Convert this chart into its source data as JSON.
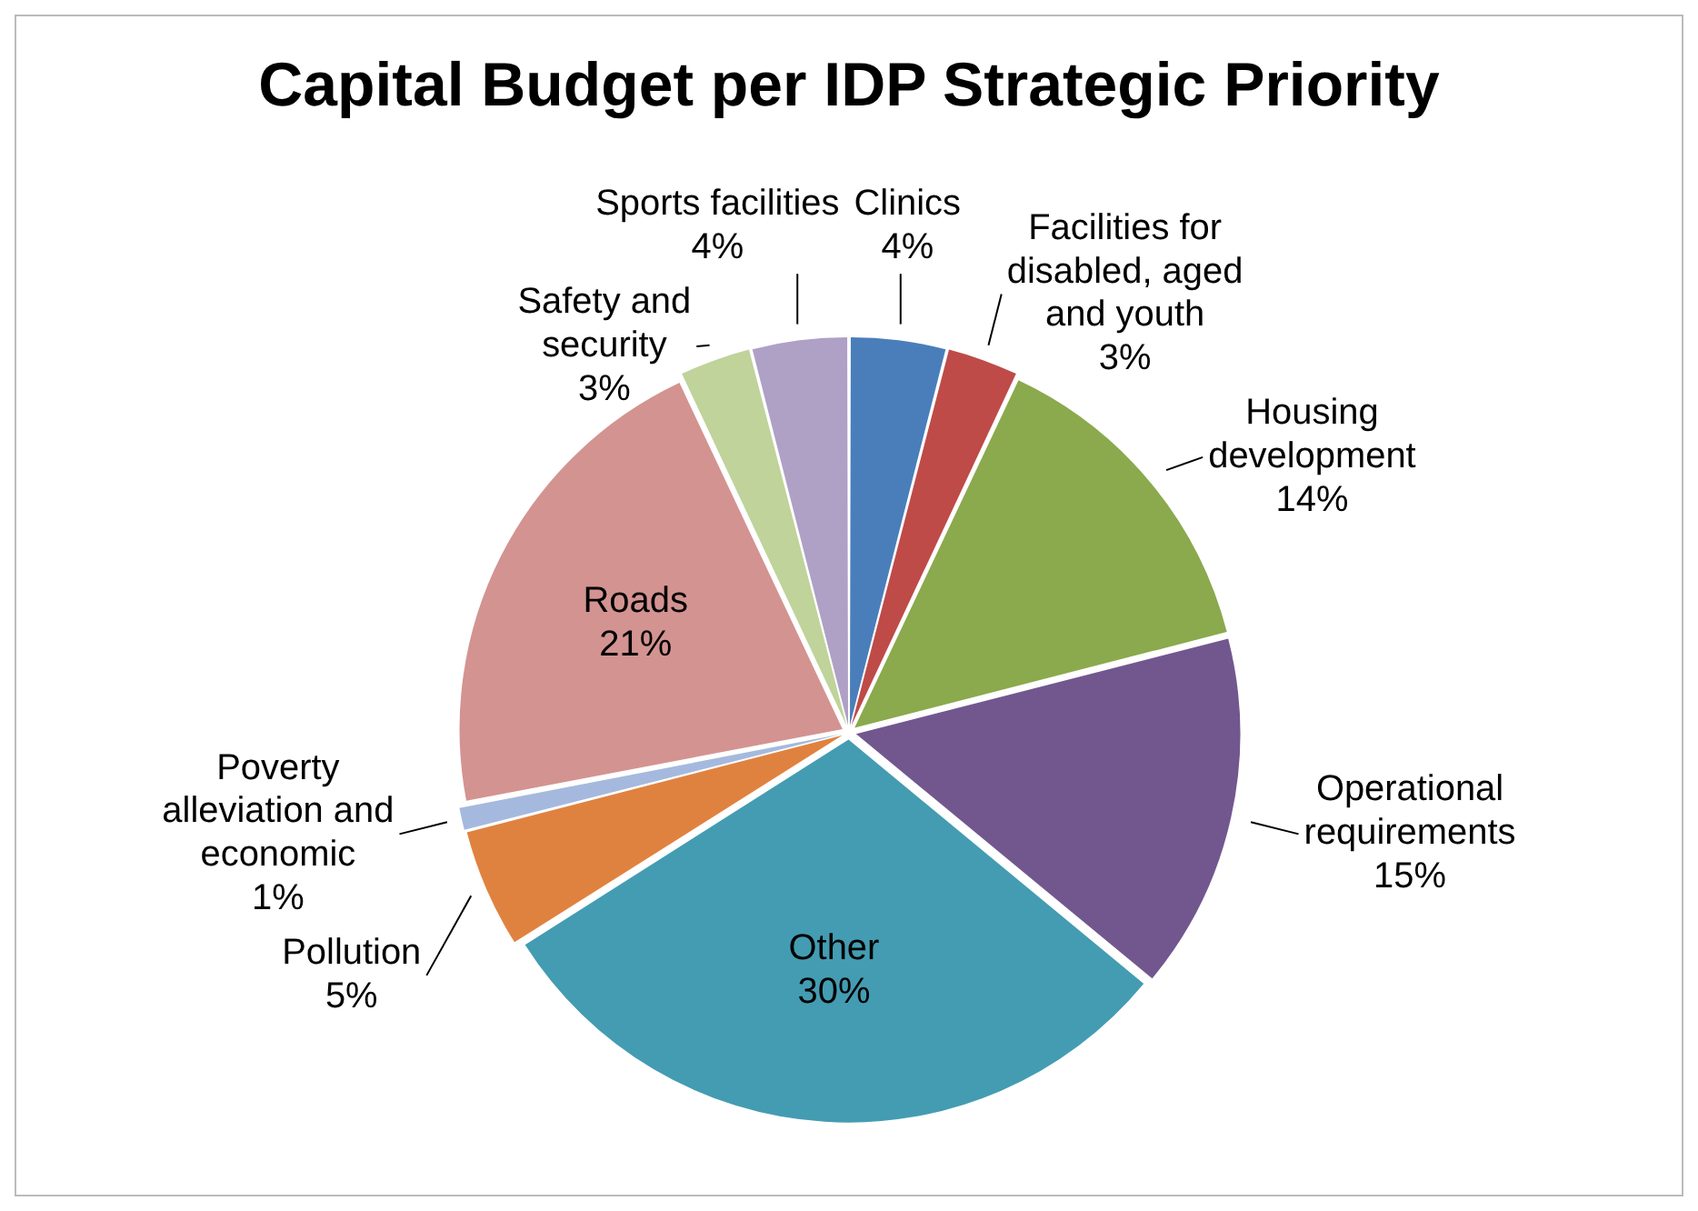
{
  "chart_data": {
    "type": "pie",
    "title": "Capital Budget per IDP Strategic Priority",
    "categories": [
      "Clinics",
      "Facilities for disabled, aged and youth",
      "Housing development",
      "Operational requirements",
      "Other",
      "Pollution",
      "Poverty alleviation and economic",
      "Roads",
      "Safety and security",
      "Sports facilities"
    ],
    "values": [
      4,
      3,
      14,
      15,
      30,
      5,
      1,
      21,
      3,
      4
    ],
    "value_labels": [
      "4%",
      "3%",
      "14%",
      "15%",
      "30%",
      "5%",
      "1%",
      "21%",
      "3%",
      "4%"
    ],
    "colors": [
      "#4a7ebb",
      "#be4b48",
      "#8ba94d",
      "#72578f",
      "#449cb2",
      "#e0823f",
      "#a5b9de",
      "#d39391",
      "#bfd39a",
      "#afa0c6"
    ],
    "legend": false
  }
}
